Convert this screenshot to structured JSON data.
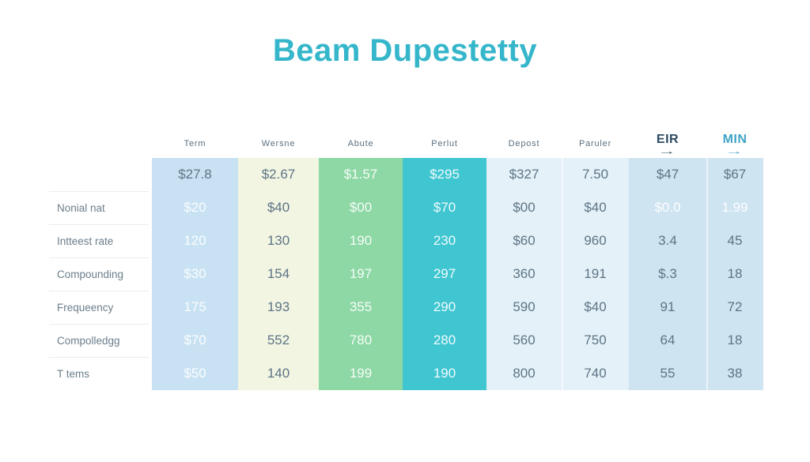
{
  "title": "Beam Dupestetty",
  "colors": {
    "title": "#35b6ca",
    "header": "#5b7080",
    "label": "#6b7e8b",
    "dark": "#5e7485",
    "light": "rgba(255,255,255,0.92)",
    "eir": "#2b4a63",
    "min": "#3fa3c6",
    "divider": "#e9edef"
  },
  "icons": {
    "right_arrow": "→"
  },
  "chart_data": {
    "type": "table",
    "title": "Beam Dupestetty",
    "legend_position": "none",
    "grid": false,
    "columns": [
      {
        "id": "term",
        "label": "Term",
        "band": "#c8e2f3"
      },
      {
        "id": "wersne",
        "label": "Wersne",
        "band": "#f1f5e2"
      },
      {
        "id": "abute",
        "label": "Abute",
        "band": "#8dd8a5"
      },
      {
        "id": "perlut",
        "label": "Perlut",
        "band": "#3fc6d1"
      },
      {
        "id": "depost",
        "label": "Depost",
        "band": "#e4f1f8"
      },
      {
        "id": "paruler",
        "label": "Paruler",
        "band": "#e4f1f8",
        "seam": true
      },
      {
        "id": "eir",
        "label": "EIR",
        "band": "#cfe4f1",
        "emphasis": "dark",
        "arrow": true
      },
      {
        "id": "min",
        "label": "MIN",
        "band": "#cfe4f1",
        "emphasis": "teal",
        "arrow": true,
        "seam": true
      }
    ],
    "rows": [
      {
        "label": "",
        "cells": [
          [
            "$27.8",
            "dark"
          ],
          [
            "$2.67",
            "dark"
          ],
          [
            "$1.57",
            "light"
          ],
          [
            "$295",
            "light"
          ],
          [
            "$327",
            "dark"
          ],
          [
            "7.50",
            "dark"
          ],
          [
            "$47",
            "dark"
          ],
          [
            "$67",
            "dark"
          ]
        ]
      },
      {
        "label": "Nonial nat",
        "cells": [
          [
            "$20",
            "light"
          ],
          [
            "$40",
            "dark"
          ],
          [
            "$00",
            "light"
          ],
          [
            "$70",
            "light"
          ],
          [
            "$00",
            "dark"
          ],
          [
            "$40",
            "dark"
          ],
          [
            "$0.0",
            "light"
          ],
          [
            "1.99",
            "light"
          ]
        ]
      },
      {
        "label": "Intteest rate",
        "cells": [
          [
            "120",
            "light"
          ],
          [
            "130",
            "dark"
          ],
          [
            "190",
            "light"
          ],
          [
            "230",
            "light"
          ],
          [
            "$60",
            "dark"
          ],
          [
            "960",
            "dark"
          ],
          [
            "3.4",
            "dark"
          ],
          [
            "45",
            "dark"
          ]
        ]
      },
      {
        "label": "Compounding",
        "cells": [
          [
            "$30",
            "light"
          ],
          [
            "154",
            "dark"
          ],
          [
            "197",
            "light"
          ],
          [
            "297",
            "light"
          ],
          [
            "360",
            "dark"
          ],
          [
            "191",
            "dark"
          ],
          [
            "$.3",
            "dark"
          ],
          [
            "18",
            "dark"
          ]
        ]
      },
      {
        "label": "Frequeency",
        "cells": [
          [
            "175",
            "light"
          ],
          [
            "193",
            "dark"
          ],
          [
            "355",
            "light"
          ],
          [
            "290",
            "light"
          ],
          [
            "590",
            "dark"
          ],
          [
            "$40",
            "dark"
          ],
          [
            "91",
            "dark"
          ],
          [
            "72",
            "dark"
          ]
        ]
      },
      {
        "label": "Compolledgg",
        "cells": [
          [
            "$70",
            "light"
          ],
          [
            "552",
            "dark"
          ],
          [
            "780",
            "light"
          ],
          [
            "280",
            "light"
          ],
          [
            "560",
            "dark"
          ],
          [
            "750",
            "dark"
          ],
          [
            "64",
            "dark"
          ],
          [
            "18",
            "dark"
          ]
        ]
      },
      {
        "label": "T tems",
        "cells": [
          [
            "$50",
            "light"
          ],
          [
            "140",
            "dark"
          ],
          [
            "199",
            "light"
          ],
          [
            "190",
            "light"
          ],
          [
            "800",
            "dark"
          ],
          [
            "740",
            "dark"
          ],
          [
            "55",
            "dark"
          ],
          [
            "38",
            "dark"
          ]
        ]
      }
    ]
  }
}
